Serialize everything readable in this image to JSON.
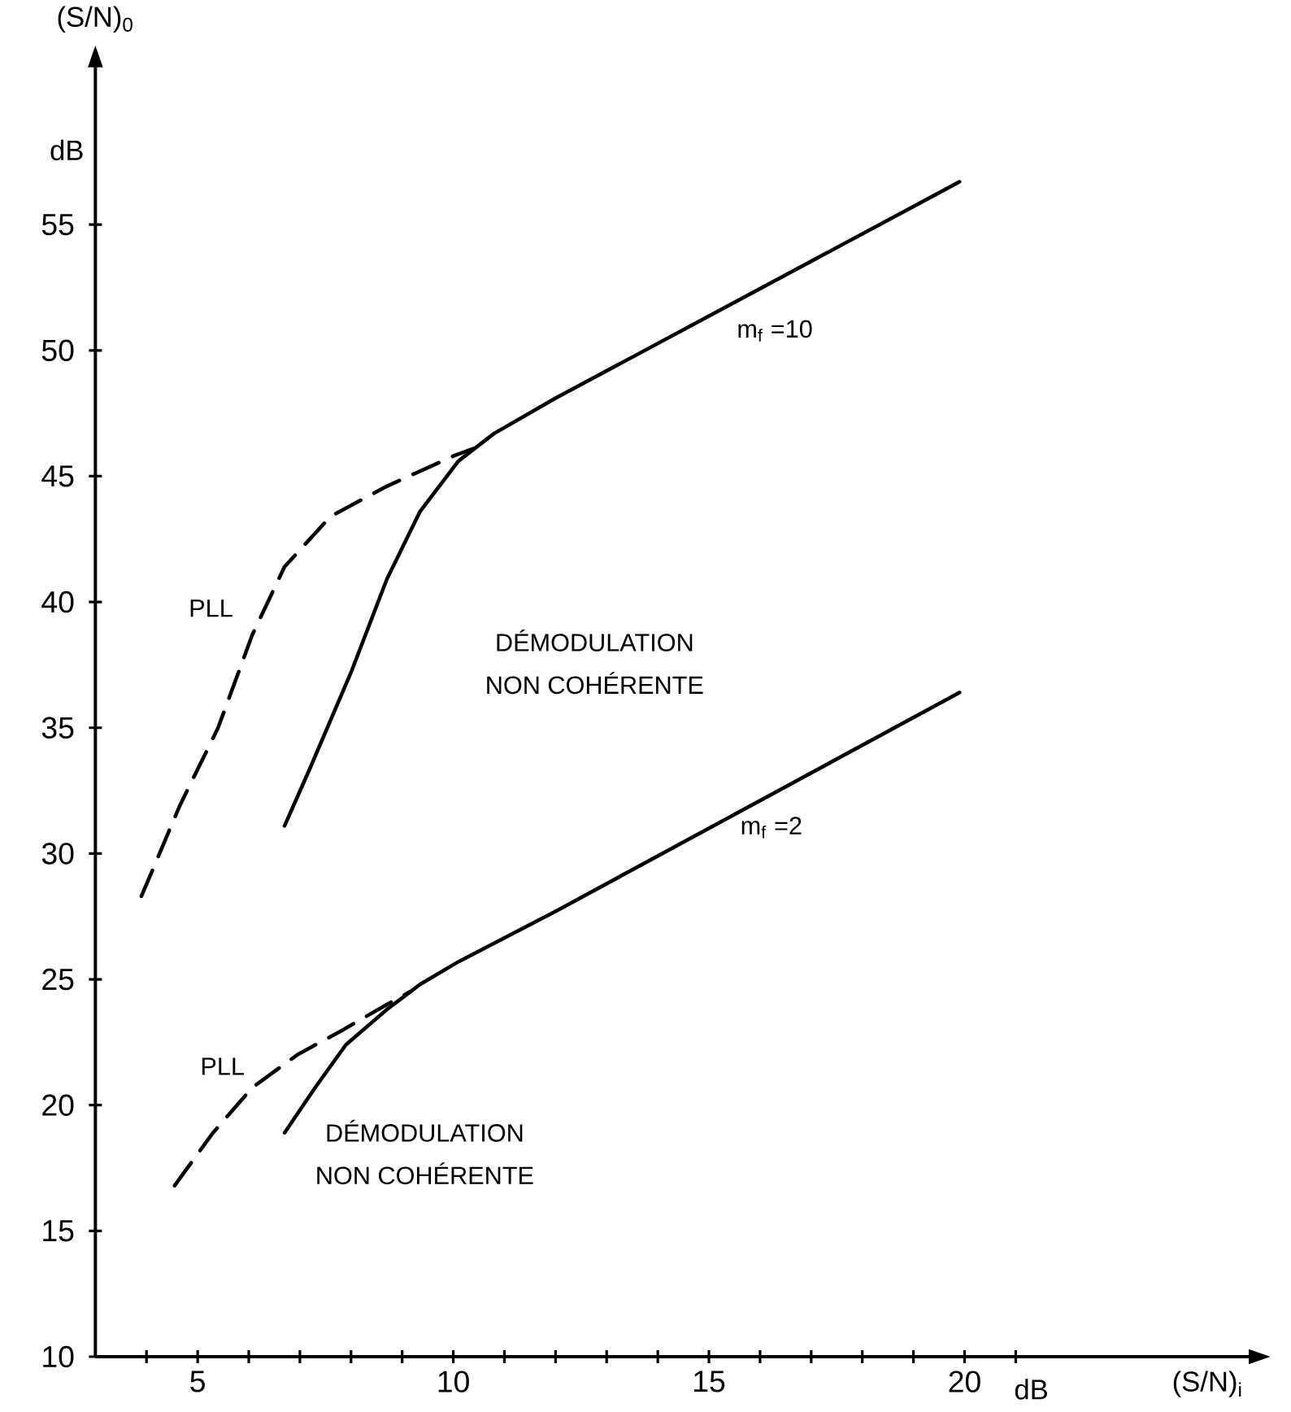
{
  "chart_data": {
    "type": "line",
    "xlabel": "(S/N)$_{i}$",
    "ylabel": "(S/N)$_{0}$",
    "xlim": [
      3,
      25.6
    ],
    "ylim": [
      10,
      61.3
    ],
    "xticks": [
      {
        "value": 4,
        "label": null
      },
      5,
      {
        "value": 6,
        "label": null
      },
      {
        "value": 7,
        "label": null
      },
      {
        "value": 8,
        "label": null
      },
      {
        "value": 9,
        "label": null
      },
      10,
      {
        "value": 11,
        "label": null
      },
      {
        "value": 12,
        "label": null
      },
      {
        "value": 13,
        "label": null
      },
      {
        "value": 14,
        "label": null
      },
      15,
      {
        "value": 16,
        "label": null
      },
      {
        "value": 17,
        "label": null
      },
      {
        "value": 18,
        "label": null
      },
      {
        "value": 19,
        "label": null
      },
      20,
      {
        "value": 21,
        "label": null
      }
    ],
    "yticks": [
      10,
      15,
      20,
      25,
      30,
      35,
      40,
      45,
      50,
      55
    ],
    "marker": "none",
    "grid": false,
    "series": [
      {
        "color": "#000000",
        "line_style": "solid",
        "x": [
          6.7,
          7.2,
          8.0,
          8.7,
          9.35,
          10.1,
          10.8,
          12.0,
          19.9
        ],
        "values": [
          31.1,
          33.4,
          37.2,
          40.9,
          43.6,
          45.6,
          46.7,
          48.1,
          56.7
        ]
      },
      {
        "color": "#000000",
        "line_style": "dashed",
        "x": [
          3.9,
          4.65,
          5.4,
          6.07,
          6.7,
          7.6,
          8.7,
          10.0,
          10.4
        ],
        "values": [
          28.3,
          31.9,
          35.0,
          38.7,
          41.4,
          43.4,
          44.6,
          45.8,
          46.1
        ]
      },
      {
        "color": "#000000",
        "line_style": "solid",
        "x": [
          6.7,
          7.3,
          7.9,
          8.7,
          9.35,
          10.1,
          12.0,
          19.9
        ],
        "values": [
          18.9,
          20.7,
          22.4,
          23.8,
          24.8,
          25.7,
          27.7,
          36.4
        ]
      },
      {
        "color": "#000000",
        "line_style": "dashed",
        "x": [
          4.55,
          5.3,
          6.07,
          6.95,
          7.85,
          8.7,
          9.15
        ],
        "values": [
          16.8,
          18.9,
          20.7,
          22.0,
          23.0,
          24.0,
          24.5
        ]
      }
    ],
    "annotations": [
      "dB",
      "dB",
      "m$_{f}$ =10",
      "PLL",
      "DÉMODULATION",
      "NON COHÉRENTE",
      "m$_{f}$ =2",
      "PLL",
      "DÉMODULATION",
      "NON COHÉRENTE"
    ]
  }
}
